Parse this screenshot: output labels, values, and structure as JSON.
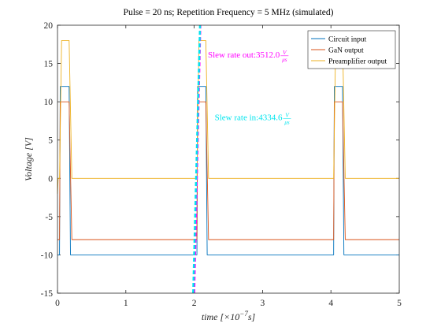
{
  "chart_data": {
    "type": "line",
    "title": "Pulse = 20 ns; Repetition Frequency = 5 MHz (simulated)",
    "xlabel": {
      "prefix": "time [×10",
      "exponent": "−7",
      "suffix": "s]"
    },
    "ylabel": "Voltage [V]",
    "xlim": [
      0,
      5
    ],
    "ylim": [
      -15,
      20
    ],
    "xticks": [
      "0",
      "1",
      "2",
      "3",
      "4",
      "5"
    ],
    "yticks": [
      "-15",
      "-10",
      "-5",
      "0",
      "5",
      "10",
      "15",
      "20"
    ],
    "legend_position": "top-right",
    "grid": false,
    "series": [
      {
        "name": "Circuit input",
        "color": "#0072bd",
        "points": [
          [
            0,
            -10
          ],
          [
            0.03,
            -10
          ],
          [
            0.04,
            12
          ],
          [
            0.17,
            12
          ],
          [
            0.19,
            -10
          ],
          [
            2.04,
            -10
          ],
          [
            2.05,
            12
          ],
          [
            2.17,
            12
          ],
          [
            2.19,
            -10
          ],
          [
            4.04,
            -10
          ],
          [
            4.05,
            12
          ],
          [
            4.17,
            12
          ],
          [
            4.19,
            -10
          ],
          [
            5,
            -10
          ]
        ]
      },
      {
        "name": "GaN output",
        "color": "#d95319",
        "points": [
          [
            0,
            -8
          ],
          [
            0.03,
            -8
          ],
          [
            0.04,
            10
          ],
          [
            0.17,
            10
          ],
          [
            0.21,
            -8
          ],
          [
            2.04,
            -8
          ],
          [
            2.05,
            10
          ],
          [
            2.17,
            10
          ],
          [
            2.21,
            -8
          ],
          [
            4.04,
            -8
          ],
          [
            4.05,
            10
          ],
          [
            4.17,
            10
          ],
          [
            4.21,
            -8
          ],
          [
            5,
            -8
          ]
        ]
      },
      {
        "name": "Preamplifier output",
        "color": "#edb120",
        "points": [
          [
            0,
            -2
          ],
          [
            0.01,
            0
          ],
          [
            0.03,
            0
          ],
          [
            0.06,
            18
          ],
          [
            0.17,
            18
          ],
          [
            0.21,
            0
          ],
          [
            2.04,
            0
          ],
          [
            2.07,
            18
          ],
          [
            2.17,
            18
          ],
          [
            2.21,
            0
          ],
          [
            4.04,
            0
          ],
          [
            4.07,
            18
          ],
          [
            4.17,
            18
          ],
          [
            4.21,
            0
          ],
          [
            5,
            0
          ]
        ]
      }
    ],
    "annotations": [
      {
        "name": "slew-out",
        "label": "Slew rate out:3512.0",
        "fraction_numerator": "V",
        "fraction_denominator": "μs",
        "color": "#ff00ff",
        "anchor": [
          2.2,
          15.8
        ],
        "line": [
          [
            2.0,
            -15
          ],
          [
            2.09,
            20
          ]
        ],
        "dash": "5,3",
        "width": 2.5
      },
      {
        "name": "slew-in",
        "label": "Slew rate in:4334.6",
        "fraction_numerator": "V",
        "fraction_denominator": "μs",
        "color": "#00e5ee",
        "anchor": [
          2.3,
          7.6
        ],
        "line": [
          [
            1.985,
            -15
          ],
          [
            2.085,
            20
          ]
        ],
        "dash": "5,3",
        "width": 2.5
      }
    ]
  }
}
